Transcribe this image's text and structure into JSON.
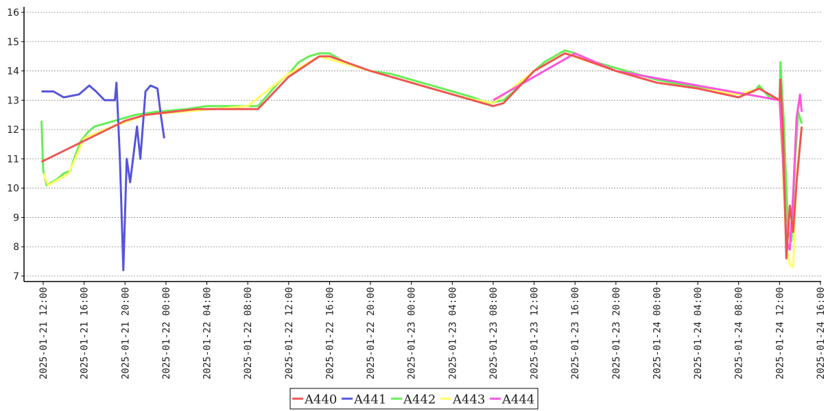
{
  "chart_data": {
    "type": "line",
    "title": "",
    "xlabel": "",
    "ylabel": "",
    "ylim": [
      7,
      16
    ],
    "xlim": [
      "2025-01-21 11:00",
      "2025-01-24 16:00"
    ],
    "grid": "horizontal dashed",
    "legend_position": "bottom-center",
    "y_ticks": [
      7,
      8,
      9,
      10,
      11,
      12,
      13,
      14,
      15,
      16
    ],
    "x_ticks": [
      "2025-01-21 12:00",
      "2025-01-21 16:00",
      "2025-01-21 20:00",
      "2025-01-22 00:00",
      "2025-01-22 04:00",
      "2025-01-22 08:00",
      "2025-01-22 12:00",
      "2025-01-22 16:00",
      "2025-01-22 20:00",
      "2025-01-23 00:00",
      "2025-01-23 04:00",
      "2025-01-23 08:00",
      "2025-01-23 12:00",
      "2025-01-23 16:00",
      "2025-01-23 20:00",
      "2025-01-24 00:00",
      "2025-01-24 04:00",
      "2025-01-24 08:00",
      "2025-01-24 12:00",
      "2025-01-24 16:00"
    ],
    "series": [
      {
        "name": "A442",
        "color": "#66ee55",
        "points": [
          [
            "2025-01-21 11:50",
            12.3
          ],
          [
            "2025-01-21 12:00",
            10.6
          ],
          [
            "2025-01-21 12:20",
            10.1
          ],
          [
            "2025-01-21 13:20",
            10.3
          ],
          [
            "2025-01-21 14:00",
            10.5
          ],
          [
            "2025-01-21 14:40",
            10.6
          ],
          [
            "2025-01-21 15:00",
            11.0
          ],
          [
            "2025-01-21 15:40",
            11.6
          ],
          [
            "2025-01-21 16:20",
            11.9
          ],
          [
            "2025-01-21 17:00",
            12.1
          ],
          [
            "2025-01-21 18:00",
            12.2
          ],
          [
            "2025-01-21 19:00",
            12.3
          ],
          [
            "2025-01-21 20:00",
            12.4
          ],
          [
            "2025-01-21 21:00",
            12.5
          ],
          [
            "2025-01-21 23:00",
            12.6
          ],
          [
            "2025-01-22 02:00",
            12.7
          ],
          [
            "2025-01-22 04:00",
            12.8
          ],
          [
            "2025-01-22 09:00",
            12.8
          ],
          [
            "2025-01-22 10:00",
            13.2
          ],
          [
            "2025-01-22 11:00",
            13.6
          ],
          [
            "2025-01-22 12:00",
            13.9
          ],
          [
            "2025-01-22 13:00",
            14.3
          ],
          [
            "2025-01-22 14:00",
            14.5
          ],
          [
            "2025-01-22 15:00",
            14.6
          ],
          [
            "2025-01-22 16:00",
            14.6
          ],
          [
            "2025-01-22 17:00",
            14.4
          ],
          [
            "2025-01-22 18:00",
            14.2
          ],
          [
            "2025-01-22 19:00",
            14.1
          ],
          [
            "2025-01-22 20:00",
            14.0
          ],
          [
            "2025-01-22 22:00",
            13.9
          ],
          [
            "2025-01-23 00:00",
            13.7
          ],
          [
            "2025-01-23 02:00",
            13.5
          ],
          [
            "2025-01-23 04:00",
            13.3
          ],
          [
            "2025-01-23 06:00",
            13.1
          ],
          [
            "2025-01-23 07:30",
            12.9
          ],
          [
            "2025-01-23 09:00",
            13.0
          ],
          [
            "2025-01-23 10:00",
            13.3
          ],
          [
            "2025-01-23 11:00",
            13.7
          ],
          [
            "2025-01-23 12:00",
            14.0
          ],
          [
            "2025-01-23 13:00",
            14.3
          ],
          [
            "2025-01-23 14:00",
            14.5
          ],
          [
            "2025-01-23 15:00",
            14.7
          ],
          [
            "2025-01-23 16:00",
            14.6
          ],
          [
            "2025-01-23 18:00",
            14.3
          ],
          [
            "2025-01-23 20:00",
            14.1
          ],
          [
            "2025-01-23 22:00",
            13.9
          ],
          [
            "2025-01-24 00:00",
            13.7
          ],
          [
            "2025-01-24 03:00",
            13.5
          ],
          [
            "2025-01-24 06:00",
            13.3
          ],
          [
            "2025-01-24 08:00",
            13.2
          ],
          [
            "2025-01-24 09:30",
            13.3
          ],
          [
            "2025-01-24 10:00",
            13.5
          ],
          [
            "2025-01-24 11:00",
            13.1
          ],
          [
            "2025-01-24 12:00",
            13.0
          ],
          [
            "2025-01-24 12:05",
            14.3
          ],
          [
            "2025-01-24 12:25",
            12.3
          ],
          [
            "2025-01-24 12:50",
            8.5
          ],
          [
            "2025-01-24 13:10",
            8.2
          ],
          [
            "2025-01-24 13:30",
            10.8
          ],
          [
            "2025-01-24 13:50",
            12.6
          ],
          [
            "2025-01-24 14:10",
            12.2
          ]
        ]
      },
      {
        "name": "A443",
        "color": "#ffff66",
        "points": [
          [
            "2025-01-21 12:00",
            10.5
          ],
          [
            "2025-01-21 12:30",
            10.1
          ],
          [
            "2025-01-21 14:30",
            10.5
          ],
          [
            "2025-01-21 16:00",
            11.7
          ],
          [
            "2025-01-21 18:00",
            12.0
          ],
          [
            "2025-01-21 22:00",
            12.5
          ],
          [
            "2025-01-22 08:00",
            12.8
          ],
          [
            "2025-01-22 12:00",
            13.9
          ],
          [
            "2025-01-22 15:00",
            14.5
          ],
          [
            "2025-01-22 20:00",
            14.0
          ],
          [
            "2025-01-23 00:00",
            13.6
          ],
          [
            "2025-01-23 05:00",
            13.1
          ],
          [
            "2025-01-23 08:00",
            12.9
          ],
          [
            "2025-01-23 12:00",
            14.0
          ],
          [
            "2025-01-23 15:00",
            14.6
          ],
          [
            "2025-01-23 20:00",
            14.0
          ],
          [
            "2025-01-24 00:00",
            13.6
          ],
          [
            "2025-01-24 08:00",
            13.2
          ],
          [
            "2025-01-24 10:00",
            13.4
          ],
          [
            "2025-01-24 12:00",
            13.0
          ],
          [
            "2025-01-24 12:40",
            8.0
          ],
          [
            "2025-01-24 13:00",
            7.4
          ],
          [
            "2025-01-24 13:20",
            7.3
          ],
          [
            "2025-01-24 13:40",
            10.5
          ],
          [
            "2025-01-24 14:10",
            12.1
          ]
        ]
      },
      {
        "name": "A444",
        "color": "#ff55dd",
        "points": [
          [
            "2025-01-23 08:00",
            13.0
          ],
          [
            "2025-01-23 16:00",
            14.6
          ],
          [
            "2025-01-23 20:00",
            14.0
          ],
          [
            "2025-01-24 12:00",
            13.0
          ],
          [
            "2025-01-24 12:20",
            11.0
          ],
          [
            "2025-01-24 12:40",
            8.2
          ],
          [
            "2025-01-24 13:00",
            7.9
          ],
          [
            "2025-01-24 13:20",
            9.8
          ],
          [
            "2025-01-24 13:40",
            12.4
          ],
          [
            "2025-01-24 14:00",
            13.2
          ],
          [
            "2025-01-24 14:10",
            12.6
          ]
        ]
      },
      {
        "name": "A441",
        "color": "#5555dd",
        "points": [
          [
            "2025-01-21 11:50",
            13.3
          ],
          [
            "2025-01-21 13:00",
            13.3
          ],
          [
            "2025-01-21 14:00",
            13.1
          ],
          [
            "2025-01-21 15:30",
            13.2
          ],
          [
            "2025-01-21 16:30",
            13.5
          ],
          [
            "2025-01-21 17:10",
            13.3
          ],
          [
            "2025-01-21 18:00",
            13.0
          ],
          [
            "2025-01-21 19:00",
            13.0
          ],
          [
            "2025-01-21 19:10",
            13.6
          ],
          [
            "2025-01-21 19:30",
            11.0
          ],
          [
            "2025-01-21 19:50",
            7.2
          ],
          [
            "2025-01-21 20:10",
            11.0
          ],
          [
            "2025-01-21 20:30",
            10.2
          ],
          [
            "2025-01-21 21:10",
            12.1
          ],
          [
            "2025-01-21 21:30",
            11.0
          ],
          [
            "2025-01-21 22:00",
            13.3
          ],
          [
            "2025-01-21 22:30",
            13.5
          ],
          [
            "2025-01-21 23:10",
            13.4
          ],
          [
            "2025-01-21 23:30",
            12.5
          ],
          [
            "2025-01-21 23:50",
            11.7
          ]
        ]
      },
      {
        "name": "A440",
        "color": "#ee5555",
        "points": [
          [
            "2025-01-21 11:50",
            10.9
          ],
          [
            "2025-01-21 20:00",
            12.3
          ],
          [
            "2025-01-21 22:00",
            12.5
          ],
          [
            "2025-01-22 03:00",
            12.7
          ],
          [
            "2025-01-22 09:00",
            12.7
          ],
          [
            "2025-01-22 12:00",
            13.8
          ],
          [
            "2025-01-22 15:00",
            14.5
          ],
          [
            "2025-01-22 16:00",
            14.5
          ],
          [
            "2025-01-22 20:00",
            14.0
          ],
          [
            "2025-01-23 00:00",
            13.6
          ],
          [
            "2025-01-23 05:00",
            13.1
          ],
          [
            "2025-01-23 08:00",
            12.8
          ],
          [
            "2025-01-23 09:00",
            12.9
          ],
          [
            "2025-01-23 12:00",
            14.0
          ],
          [
            "2025-01-23 15:00",
            14.6
          ],
          [
            "2025-01-23 16:00",
            14.5
          ],
          [
            "2025-01-23 20:00",
            14.0
          ],
          [
            "2025-01-24 00:00",
            13.6
          ],
          [
            "2025-01-24 04:00",
            13.4
          ],
          [
            "2025-01-24 08:00",
            13.1
          ],
          [
            "2025-01-24 10:00",
            13.4
          ],
          [
            "2025-01-24 12:00",
            13.0
          ],
          [
            "2025-01-24 12:05",
            13.7
          ],
          [
            "2025-01-24 12:20",
            12.0
          ],
          [
            "2025-01-24 12:40",
            7.6
          ],
          [
            "2025-01-24 13:00",
            9.4
          ],
          [
            "2025-01-24 13:20",
            8.5
          ],
          [
            "2025-01-24 13:40",
            10.2
          ],
          [
            "2025-01-24 14:10",
            12.1
          ]
        ]
      }
    ],
    "legend_order": [
      "A440",
      "A441",
      "A442",
      "A443",
      "A444"
    ]
  }
}
